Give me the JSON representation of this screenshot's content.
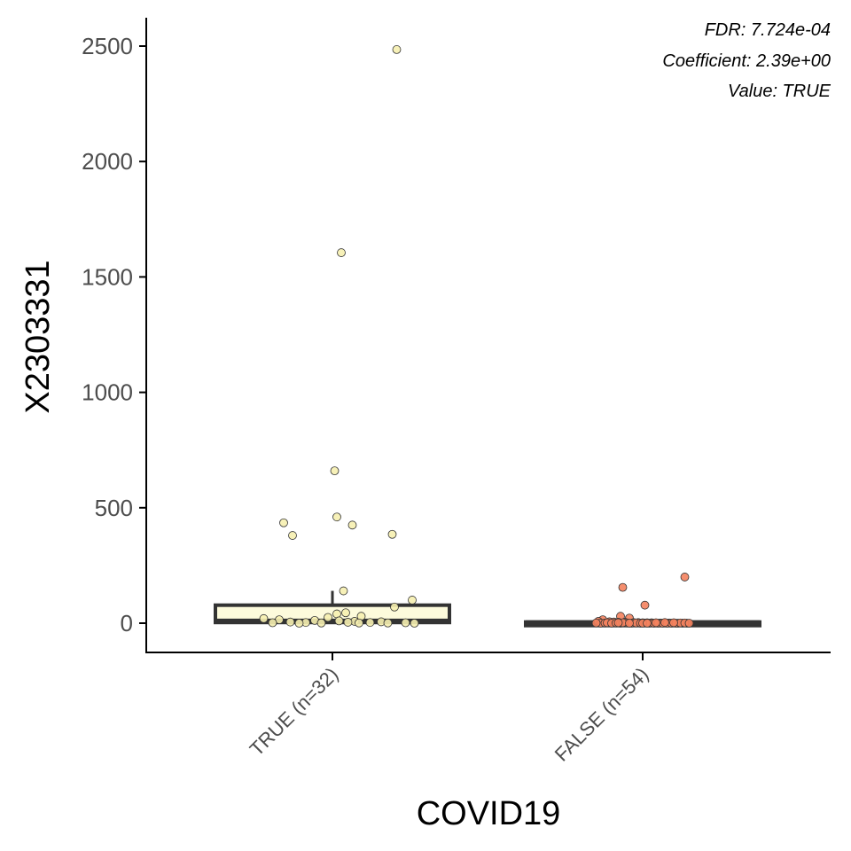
{
  "chart_data": {
    "type": "box",
    "xlabel": "COVID19",
    "ylabel": "X2303331",
    "ylim": [
      -130,
      2580
    ],
    "yticks": [
      0,
      500,
      1000,
      1500,
      2000,
      2500
    ],
    "grid": false,
    "annotations": [
      "FDR: 7.724e-04",
      "Coefficient: 2.39e+00",
      "Value: TRUE"
    ],
    "groups": [
      {
        "label": "TRUE (n=32)",
        "fill": "#fdfbdc",
        "point_color": "#f6f0b0",
        "box": {
          "q1": 3,
          "median": 8,
          "q3": 78,
          "whisker_low": 0,
          "whisker_high": 140
        },
        "points": [
          {
            "x": 0.29,
            "y": 2485
          },
          {
            "x": 0.04,
            "y": 1605
          },
          {
            "x": 0.01,
            "y": 660
          },
          {
            "x": 0.02,
            "y": 460
          },
          {
            "x": -0.22,
            "y": 435
          },
          {
            "x": 0.09,
            "y": 425
          },
          {
            "x": 0.27,
            "y": 385
          },
          {
            "x": -0.18,
            "y": 380
          },
          {
            "x": 0.05,
            "y": 140
          },
          {
            "x": 0.36,
            "y": 100
          },
          {
            "x": 0.28,
            "y": 70
          },
          {
            "x": 0.06,
            "y": 45
          },
          {
            "x": 0.02,
            "y": 40
          },
          {
            "x": 0.13,
            "y": 30
          },
          {
            "x": -0.02,
            "y": 25
          },
          {
            "x": -0.31,
            "y": 20
          },
          {
            "x": -0.24,
            "y": 15
          },
          {
            "x": -0.08,
            "y": 12
          },
          {
            "x": 0.03,
            "y": 10
          },
          {
            "x": 0.1,
            "y": 8
          },
          {
            "x": 0.22,
            "y": 6
          },
          {
            "x": -0.19,
            "y": 5
          },
          {
            "x": 0.07,
            "y": 4
          },
          {
            "x": -0.12,
            "y": 3
          },
          {
            "x": 0.17,
            "y": 3
          },
          {
            "x": 0.33,
            "y": 2
          },
          {
            "x": -0.27,
            "y": 2
          },
          {
            "x": -0.05,
            "y": 1
          },
          {
            "x": 0.12,
            "y": 1
          },
          {
            "x": 0.25,
            "y": 1
          },
          {
            "x": 0.37,
            "y": 0
          },
          {
            "x": -0.15,
            "y": 0
          }
        ]
      },
      {
        "label": "FALSE (n=54)",
        "fill": "#fc9272",
        "point_color": "#f4825e",
        "box": {
          "q1": 0,
          "median": 1,
          "q3": 5,
          "whisker_low": 0,
          "whisker_high": 12
        },
        "points": [
          {
            "x": 0.19,
            "y": 200
          },
          {
            "x": -0.09,
            "y": 155
          },
          {
            "x": 0.01,
            "y": 78
          },
          {
            "x": -0.1,
            "y": 30
          },
          {
            "x": -0.06,
            "y": 22
          },
          {
            "x": -0.18,
            "y": 15
          },
          {
            "x": -0.2,
            "y": 8
          },
          {
            "x": -0.15,
            "y": 6
          },
          {
            "x": -0.13,
            "y": 5
          },
          {
            "x": -0.11,
            "y": 4
          },
          {
            "x": -0.08,
            "y": 4
          },
          {
            "x": -0.04,
            "y": 3
          },
          {
            "x": -0.02,
            "y": 3
          },
          {
            "x": 0.0,
            "y": 2
          },
          {
            "x": 0.02,
            "y": 2
          },
          {
            "x": 0.04,
            "y": 2
          },
          {
            "x": 0.06,
            "y": 1
          },
          {
            "x": 0.08,
            "y": 1
          },
          {
            "x": 0.1,
            "y": 1
          },
          {
            "x": 0.12,
            "y": 1
          },
          {
            "x": 0.14,
            "y": 1
          },
          {
            "x": 0.16,
            "y": 0
          },
          {
            "x": 0.18,
            "y": 0
          },
          {
            "x": 0.2,
            "y": 0
          },
          {
            "x": -0.19,
            "y": 0
          },
          {
            "x": -0.17,
            "y": 1
          },
          {
            "x": -0.16,
            "y": 2
          },
          {
            "x": -0.14,
            "y": 0
          },
          {
            "x": -0.12,
            "y": 1
          },
          {
            "x": -0.1,
            "y": 0
          },
          {
            "x": -0.07,
            "y": 1
          },
          {
            "x": -0.05,
            "y": 0
          },
          {
            "x": -0.03,
            "y": 1
          },
          {
            "x": -0.01,
            "y": 0
          },
          {
            "x": 0.01,
            "y": 1
          },
          {
            "x": 0.03,
            "y": 0
          },
          {
            "x": 0.05,
            "y": 0
          },
          {
            "x": 0.07,
            "y": 0
          },
          {
            "x": 0.09,
            "y": 0
          },
          {
            "x": 0.11,
            "y": 0
          },
          {
            "x": 0.13,
            "y": 0
          },
          {
            "x": 0.15,
            "y": 0
          },
          {
            "x": 0.17,
            "y": 1
          },
          {
            "x": 0.19,
            "y": 1
          },
          {
            "x": 0.21,
            "y": 0
          },
          {
            "x": -0.21,
            "y": 1
          },
          {
            "x": -0.09,
            "y": 2
          },
          {
            "x": 0.0,
            "y": 0
          },
          {
            "x": 0.02,
            "y": 0
          },
          {
            "x": -0.06,
            "y": 0
          },
          {
            "x": 0.06,
            "y": 2
          },
          {
            "x": 0.1,
            "y": 3
          },
          {
            "x": -0.11,
            "y": 2
          },
          {
            "x": 0.14,
            "y": 2
          }
        ]
      }
    ]
  }
}
